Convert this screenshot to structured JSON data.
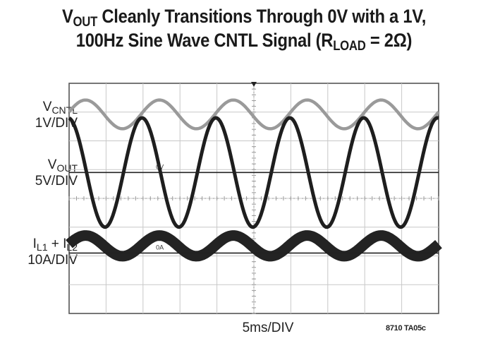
{
  "chart_data": {
    "type": "line",
    "title": {
      "line1": {
        "v": "V",
        "sub": "OUT",
        "rest": " Cleanly Transitions Through 0V with a 1V,"
      },
      "line2": {
        "pre": "100Hz Sine Wave CNTL Signal (R",
        "sub": "LOAD",
        "post": " = 2Ω)"
      }
    },
    "xlabel": "5ms/DIV",
    "figure_id": "8710 TA05c",
    "divisions": {
      "x": 10,
      "y": 8
    },
    "x_unit": "ms",
    "x_per_div": 5,
    "frequency_hz": 100,
    "cycles_shown": 5,
    "channels": [
      {
        "id": "vcntl",
        "label": {
          "main": "V",
          "sub": "CNTL",
          "rest": ""
        },
        "scale": "1V/DIV",
        "center_div": 6.92,
        "amplitude_div": 0.5,
        "phase_deg": 10,
        "color": "#9a9a9a"
      },
      {
        "id": "vout",
        "label": {
          "main": "V",
          "sub": "OUT",
          "rest": ""
        },
        "scale": "5V/DIV",
        "center_div": 4.9,
        "amplitude_div": 1.9,
        "phase_deg": 95,
        "color": "#1e1e1e",
        "marker": "0V",
        "zero_div": 4.9
      },
      {
        "id": "il",
        "label": {
          "main": "I",
          "sub": "L1",
          "mid": " + I",
          "sub2": "L2"
        },
        "scale": "10A/DIV",
        "center_div": 2.35,
        "amplitude_div": 0.36,
        "phase_deg": 10,
        "color": "#232323",
        "marker": "0A",
        "zero_div": 2.1
      }
    ]
  }
}
